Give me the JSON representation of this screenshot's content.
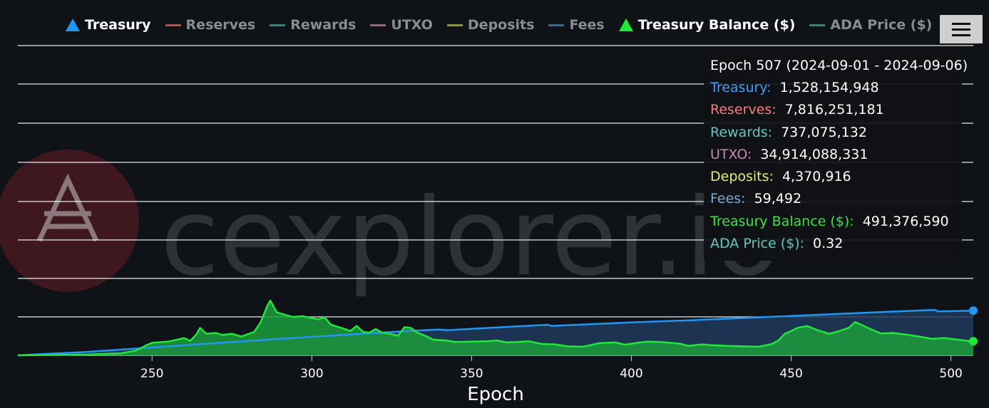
{
  "legend": [
    {
      "label": "Treasury",
      "state": "on",
      "symbol": "triangle",
      "color": "#2196f3"
    },
    {
      "label": "Reserves",
      "state": "off",
      "symbol": "line",
      "color": "#9a5a55"
    },
    {
      "label": "Rewards",
      "state": "off",
      "symbol": "line",
      "color": "#3f7f7a"
    },
    {
      "label": "UTXO",
      "state": "off",
      "symbol": "line",
      "color": "#8e6a80"
    },
    {
      "label": "Deposits",
      "state": "off",
      "symbol": "line",
      "color": "#8a9448"
    },
    {
      "label": "Fees",
      "state": "off",
      "symbol": "line",
      "color": "#3e6a82"
    },
    {
      "label": "Treasury Balance ($)",
      "state": "on",
      "symbol": "triangle",
      "color": "#22e63a"
    },
    {
      "label": "ADA Price ($)",
      "state": "off",
      "symbol": "line",
      "color": "#3f7f7a"
    }
  ],
  "watermark": "cexplorer.io",
  "tooltip": {
    "title": "Epoch 507 (2024-09-01 - 2024-09-06)",
    "rows": [
      {
        "label": "Treasury:",
        "value": "1,528,154,948",
        "color": "#3aa0ff"
      },
      {
        "label": "Reserves:",
        "value": "7,816,251,181",
        "color": "#f08080"
      },
      {
        "label": "Rewards:",
        "value": "737,075,132",
        "color": "#5fc9c0"
      },
      {
        "label": "UTXO:",
        "value": "34,914,088,331",
        "color": "#c58ab0"
      },
      {
        "label": "Deposits:",
        "value": "4,370,916",
        "color": "#e2ee70"
      },
      {
        "label": "Fees:",
        "value": "59,492",
        "color": "#6fb0d8"
      },
      {
        "label": "Treasury Balance ($):",
        "value": "491,376,590",
        "color": "#33e63f"
      },
      {
        "label": "ADA Price ($):",
        "value": "0.32",
        "color": "#5fc9c0"
      }
    ]
  },
  "colors": {
    "background": "#0f1217",
    "grid": "#ffffff",
    "treasury": "#2196f3",
    "treasury_fill": "#1f3b5c",
    "balance": "#22e63a",
    "balance_fill": "#1c9a3c"
  },
  "chart_data": {
    "type": "area",
    "xlabel": "Epoch",
    "xlim": [
      208,
      507
    ],
    "xticks": [
      250,
      300,
      350,
      400,
      450,
      500
    ],
    "grid": true,
    "legend_position": "top",
    "series": [
      {
        "name": "Treasury",
        "relative_level": [
          [
            208,
            0.0
          ],
          [
            230,
            0.09
          ],
          [
            250,
            0.2
          ],
          [
            270,
            0.31
          ],
          [
            290,
            0.42
          ],
          [
            310,
            0.52
          ],
          [
            330,
            0.62
          ],
          [
            340,
            0.66
          ],
          [
            342,
            0.64
          ],
          [
            360,
            0.72
          ],
          [
            374,
            0.78
          ],
          [
            375,
            0.75
          ],
          [
            400,
            0.84
          ],
          [
            420,
            0.9
          ],
          [
            440,
            0.97
          ],
          [
            460,
            1.04
          ],
          [
            480,
            1.11
          ],
          [
            495,
            1.16
          ],
          [
            496,
            1.12
          ],
          [
            507,
            1.14
          ]
        ]
      },
      {
        "name": "Treasury Balance ($)",
        "relative_level": [
          [
            208,
            0.0
          ],
          [
            230,
            0.02
          ],
          [
            240,
            0.05
          ],
          [
            245,
            0.12
          ],
          [
            248,
            0.25
          ],
          [
            250,
            0.32
          ],
          [
            255,
            0.35
          ],
          [
            260,
            0.44
          ],
          [
            262,
            0.37
          ],
          [
            264,
            0.55
          ],
          [
            265,
            0.7
          ],
          [
            267,
            0.55
          ],
          [
            270,
            0.57
          ],
          [
            272,
            0.52
          ],
          [
            275,
            0.55
          ],
          [
            278,
            0.48
          ],
          [
            282,
            0.6
          ],
          [
            284,
            0.85
          ],
          [
            286,
            1.25
          ],
          [
            287,
            1.4
          ],
          [
            289,
            1.1
          ],
          [
            291,
            1.05
          ],
          [
            294,
            0.98
          ],
          [
            297,
            1.0
          ],
          [
            300,
            0.95
          ],
          [
            302,
            0.92
          ],
          [
            304,
            0.97
          ],
          [
            306,
            0.78
          ],
          [
            310,
            0.68
          ],
          [
            312,
            0.62
          ],
          [
            314,
            0.75
          ],
          [
            316,
            0.6
          ],
          [
            318,
            0.58
          ],
          [
            320,
            0.67
          ],
          [
            322,
            0.58
          ],
          [
            325,
            0.54
          ],
          [
            327,
            0.5
          ],
          [
            329,
            0.72
          ],
          [
            331,
            0.7
          ],
          [
            333,
            0.58
          ],
          [
            336,
            0.48
          ],
          [
            338,
            0.4
          ],
          [
            342,
            0.38
          ],
          [
            345,
            0.34
          ],
          [
            350,
            0.35
          ],
          [
            355,
            0.36
          ],
          [
            358,
            0.38
          ],
          [
            361,
            0.33
          ],
          [
            364,
            0.34
          ],
          [
            368,
            0.36
          ],
          [
            372,
            0.29
          ],
          [
            376,
            0.28
          ],
          [
            380,
            0.23
          ],
          [
            385,
            0.22
          ],
          [
            390,
            0.31
          ],
          [
            395,
            0.33
          ],
          [
            398,
            0.27
          ],
          [
            402,
            0.32
          ],
          [
            405,
            0.35
          ],
          [
            409,
            0.34
          ],
          [
            412,
            0.32
          ],
          [
            415,
            0.3
          ],
          [
            418,
            0.24
          ],
          [
            422,
            0.28
          ],
          [
            425,
            0.26
          ],
          [
            430,
            0.24
          ],
          [
            435,
            0.23
          ],
          [
            440,
            0.22
          ],
          [
            444,
            0.29
          ],
          [
            446,
            0.38
          ],
          [
            448,
            0.55
          ],
          [
            450,
            0.62
          ],
          [
            452,
            0.7
          ],
          [
            455,
            0.75
          ],
          [
            458,
            0.65
          ],
          [
            462,
            0.55
          ],
          [
            465,
            0.62
          ],
          [
            468,
            0.7
          ],
          [
            470,
            0.85
          ],
          [
            472,
            0.78
          ],
          [
            474,
            0.7
          ],
          [
            478,
            0.56
          ],
          [
            482,
            0.57
          ],
          [
            486,
            0.53
          ],
          [
            490,
            0.48
          ],
          [
            494,
            0.42
          ],
          [
            498,
            0.44
          ],
          [
            502,
            0.4
          ],
          [
            505,
            0.37
          ],
          [
            507,
            0.36
          ]
        ]
      }
    ]
  }
}
